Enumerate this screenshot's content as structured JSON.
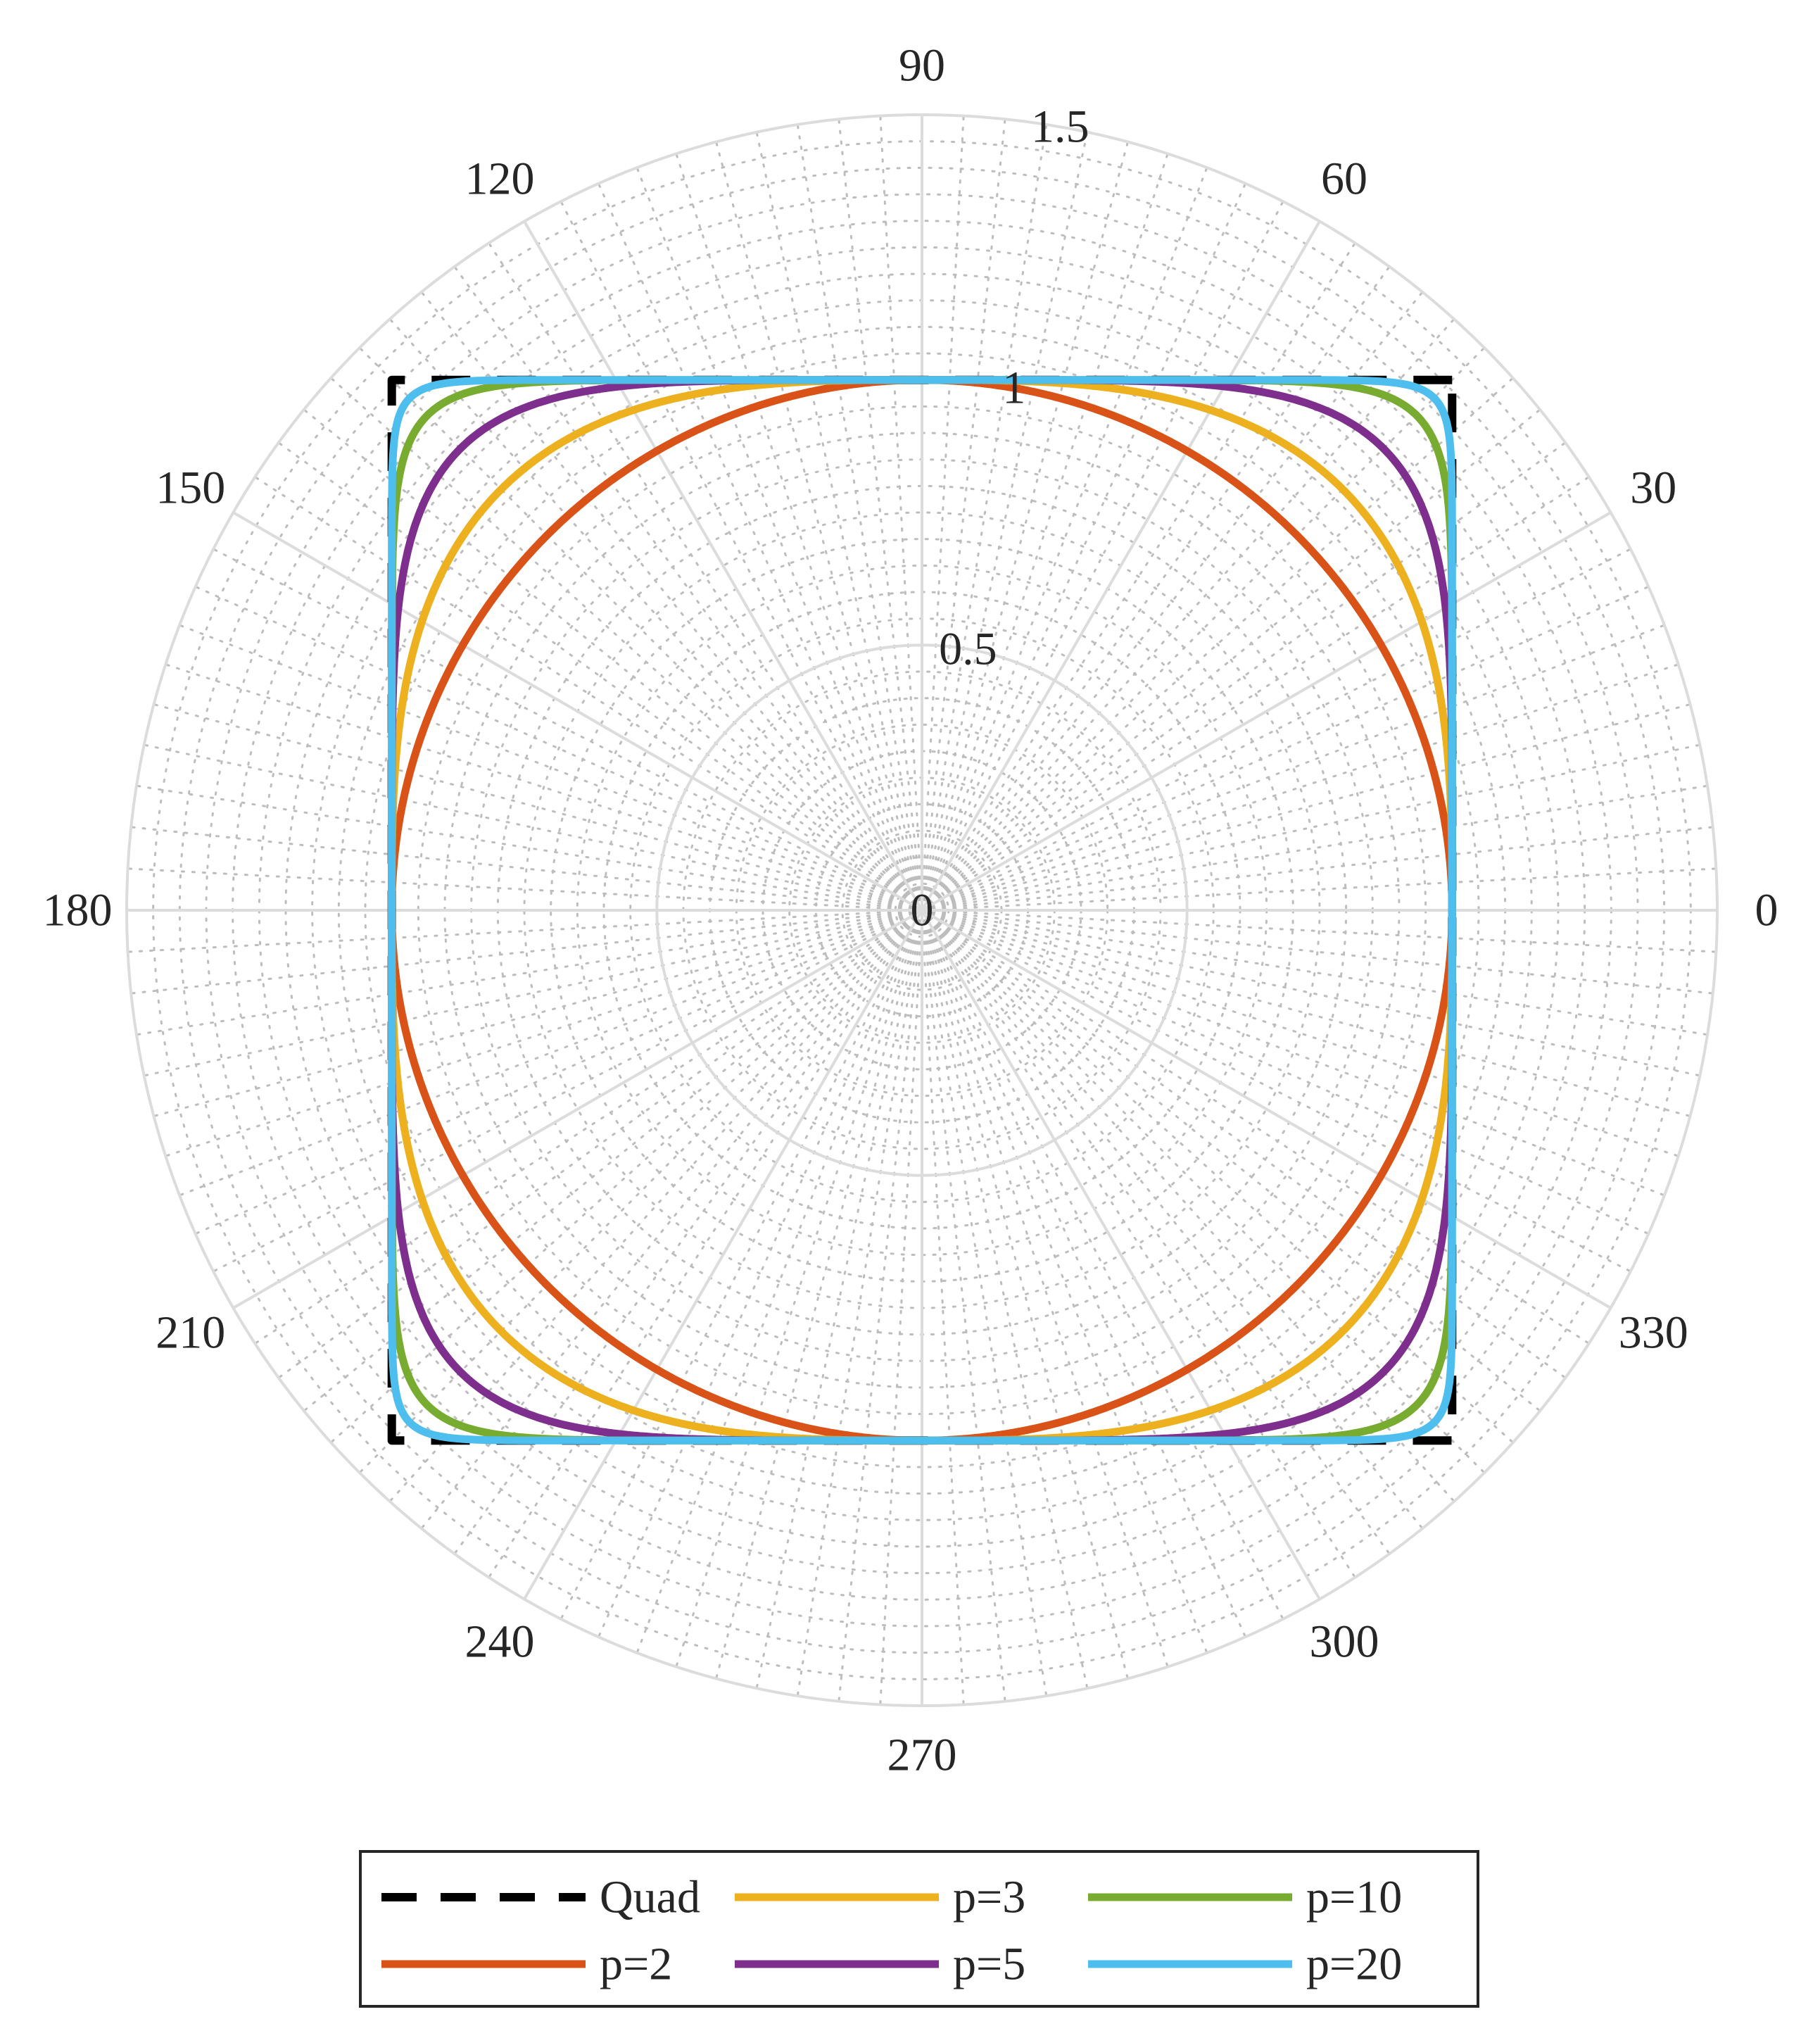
{
  "chart_data": {
    "type": "line",
    "projection": "polar",
    "theta_unit": "degrees",
    "r_range": [
      0,
      1.5
    ],
    "r_ticks": [
      0,
      0.5,
      1,
      1.5
    ],
    "r_tick_labels": [
      "0",
      "0.5",
      "1",
      "1.5"
    ],
    "theta_ticks": [
      0,
      30,
      60,
      90,
      120,
      150,
      180,
      210,
      240,
      270,
      300,
      330
    ],
    "theta_tick_labels": [
      "0",
      "30",
      "60",
      "90",
      "120",
      "150",
      "180",
      "210",
      "240",
      "270",
      "300",
      "330"
    ],
    "grid": true,
    "minor_grid": true,
    "legend_placement": "bottom",
    "legend_columns": 3,
    "series": [
      {
        "name": "Quad",
        "shape": "square",
        "exponent": null,
        "half_width": 1,
        "color": "#000000",
        "dash": "dashed"
      },
      {
        "name": "p=2",
        "shape": "superellipse",
        "exponent": 2,
        "half_width": 1,
        "color": "#D95319",
        "dash": "solid"
      },
      {
        "name": "p=3",
        "shape": "superellipse",
        "exponent": 3,
        "half_width": 1,
        "color": "#EDB120",
        "dash": "solid"
      },
      {
        "name": "p=5",
        "shape": "superellipse",
        "exponent": 5,
        "half_width": 1,
        "color": "#7E2F8E",
        "dash": "solid"
      },
      {
        "name": "p=10",
        "shape": "superellipse",
        "exponent": 10,
        "half_width": 1,
        "color": "#77AC30",
        "dash": "solid"
      },
      {
        "name": "p=20",
        "shape": "superellipse",
        "exponent": 20,
        "half_width": 1,
        "color": "#4DBEEE",
        "dash": "solid"
      }
    ]
  }
}
